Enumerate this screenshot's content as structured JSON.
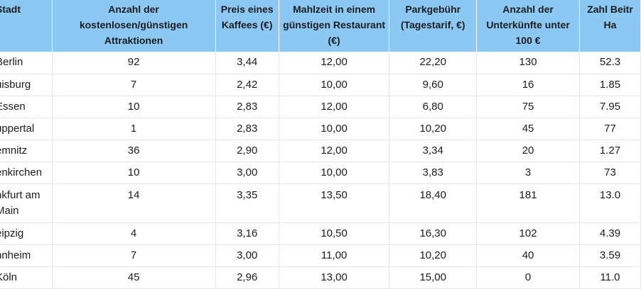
{
  "headers": [
    "Stadt",
    "Anzahl der kostenlosen/günstigen Attraktionen",
    "Preis eines Kaffees (€)",
    "Mahlzeit in einem günstigen Restaurant (€)",
    "Parkgebühr (Tagestarif, €)",
    "Anzahl der Unterkünfte unter 100 €",
    "Zahl Beitr Ha"
  ],
  "rows": [
    [
      "Berlin",
      "92",
      "3,44",
      "12,00",
      "22,20",
      "130",
      "52.3"
    ],
    [
      "uisburg",
      "7",
      "2,42",
      "10,00",
      "9,60",
      "16",
      "1.85"
    ],
    [
      "Essen",
      "10",
      "2,83",
      "12,00",
      "6,80",
      "75",
      "7.95"
    ],
    [
      "uppertal",
      "1",
      "2,83",
      "10,00",
      "10,20",
      "45",
      "77"
    ],
    [
      "emnitz",
      "36",
      "2,90",
      "12,00",
      "3,34",
      "20",
      "1.27"
    ],
    [
      "enkirchen",
      "10",
      "3,00",
      "10,00",
      "3,83",
      "3",
      "73"
    ],
    [
      "nkfurt am Main",
      "14",
      "3,35",
      "13,50",
      "18,40",
      "181",
      "13.0"
    ],
    [
      "eipzig",
      "4",
      "3,16",
      "10,50",
      "16,30",
      "102",
      "4.39"
    ],
    [
      "nnheim",
      "7",
      "3,00",
      "11,00",
      "10,20",
      "40",
      "3.59"
    ],
    [
      "Köln",
      "45",
      "2,96",
      "13,00",
      "15,00",
      "0",
      "11.0"
    ]
  ]
}
